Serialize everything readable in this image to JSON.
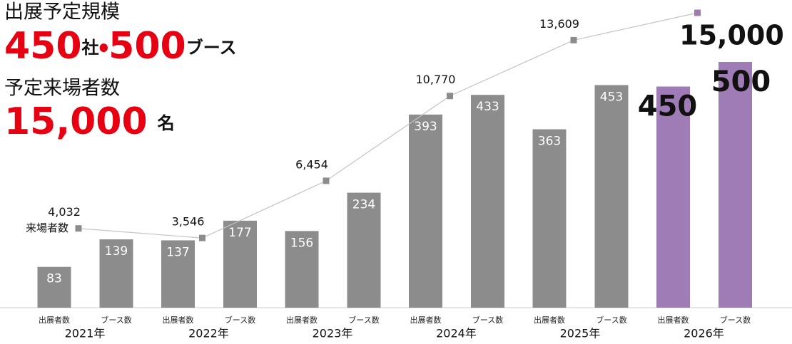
{
  "header": {
    "scale_title": "出展予定規模",
    "exhibitors": "450",
    "exhibitors_unit": "社",
    "separator": "・",
    "booths": "500",
    "booths_unit": "ブース",
    "visitors_title": "予定来場者数",
    "visitors": "15,000",
    "visitors_unit": "名"
  },
  "chart_data": {
    "type": "bar",
    "categories": [
      "2021年",
      "2022年",
      "2023年",
      "2024年",
      "2025年",
      "2026年"
    ],
    "series": [
      {
        "name": "出展者数",
        "colors": [
          "#8c8c8c",
          "#8c8c8c",
          "#8c8c8c",
          "#8c8c8c",
          "#8c8c8c",
          "#a07cb6"
        ],
        "values": [
          83,
          137,
          156,
          393,
          363,
          450
        ]
      },
      {
        "name": "ブース数",
        "colors": [
          "#8c8c8c",
          "#8c8c8c",
          "#8c8c8c",
          "#8c8c8c",
          "#8c8c8c",
          "#a07cb6"
        ],
        "values": [
          139,
          177,
          234,
          433,
          453,
          500
        ]
      },
      {
        "name": "来場者数",
        "type": "line",
        "axis": "y2",
        "color": "#c4c4c4",
        "marker_colors": [
          "#8c8c8c",
          "#8c8c8c",
          "#8c8c8c",
          "#8c8c8c",
          "#8c8c8c",
          "#a07cb6"
        ],
        "values": [
          4032,
          3546,
          6454,
          10770,
          13609,
          15000
        ],
        "value_labels": [
          "4,032",
          "3,546",
          "6,454",
          "10,770",
          "13,609",
          "15,000"
        ]
      }
    ],
    "ylim": [
      0,
      600
    ],
    "y2lim": [
      0,
      15000
    ]
  }
}
